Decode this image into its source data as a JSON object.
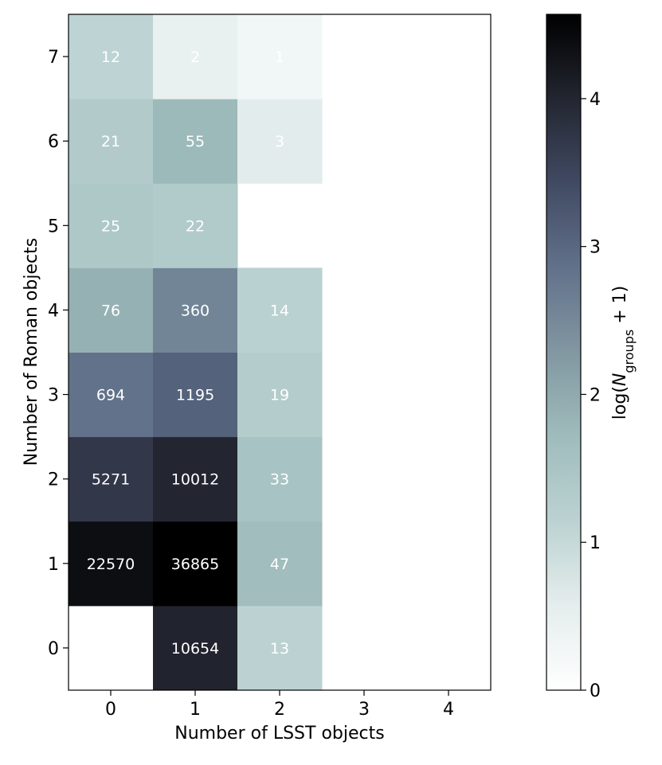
{
  "chart_data": {
    "type": "heatmap",
    "title": "",
    "xlabel": "Number of LSST objects",
    "ylabel": "Number of Roman objects",
    "x_categories": [
      0,
      1,
      2,
      3,
      4
    ],
    "y_categories": [
      0,
      1,
      2,
      3,
      4,
      5,
      6,
      7
    ],
    "xlim": [
      -0.5,
      4.5
    ],
    "ylim": [
      -0.5,
      7.5
    ],
    "cells": [
      {
        "x": 1,
        "y": 0,
        "value": 10654
      },
      {
        "x": 2,
        "y": 0,
        "value": 13
      },
      {
        "x": 0,
        "y": 1,
        "value": 22570
      },
      {
        "x": 1,
        "y": 1,
        "value": 36865
      },
      {
        "x": 2,
        "y": 1,
        "value": 47
      },
      {
        "x": 0,
        "y": 2,
        "value": 5271
      },
      {
        "x": 1,
        "y": 2,
        "value": 10012
      },
      {
        "x": 2,
        "y": 2,
        "value": 33
      },
      {
        "x": 0,
        "y": 3,
        "value": 694
      },
      {
        "x": 1,
        "y": 3,
        "value": 1195
      },
      {
        "x": 2,
        "y": 3,
        "value": 19
      },
      {
        "x": 0,
        "y": 4,
        "value": 76
      },
      {
        "x": 1,
        "y": 4,
        "value": 360
      },
      {
        "x": 2,
        "y": 4,
        "value": 14
      },
      {
        "x": 0,
        "y": 5,
        "value": 25
      },
      {
        "x": 1,
        "y": 5,
        "value": 22
      },
      {
        "x": 0,
        "y": 6,
        "value": 21
      },
      {
        "x": 1,
        "y": 6,
        "value": 55
      },
      {
        "x": 2,
        "y": 6,
        "value": 3
      },
      {
        "x": 0,
        "y": 7,
        "value": 12
      },
      {
        "x": 1,
        "y": 7,
        "value": 2
      },
      {
        "x": 2,
        "y": 7,
        "value": 1
      }
    ],
    "colorbar": {
      "label_prefix": "log(",
      "label_var": "N",
      "label_sub": "groups",
      "label_suffix": " + 1)",
      "range": [
        0,
        4.57
      ],
      "ticks": [
        0,
        1,
        2,
        3,
        4
      ],
      "colormap": "bone_r"
    },
    "grid": false
  }
}
